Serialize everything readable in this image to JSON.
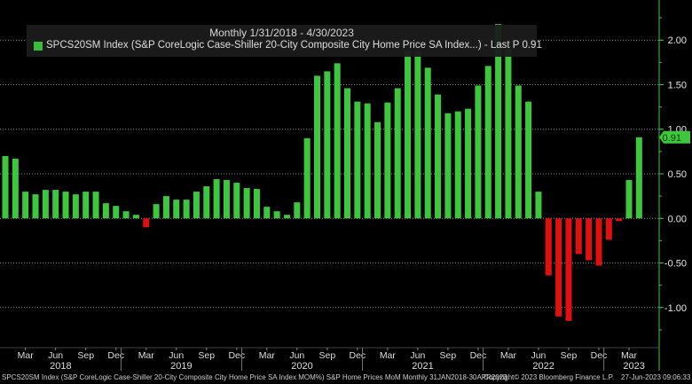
{
  "header": {
    "period": "Monthly 1/31/2018 - 4/30/2023",
    "legend_label": "SPCS20SM Index (S&P CoreLogic Case-Shiller 20-City Composite City Home Price SA Index...) - Last P 0.91"
  },
  "last_value_tag": "0.91",
  "footer": {
    "left": "SPCS20SM Index (S&P CoreLogic Case-Shiller 20-City Composite City Home Price SA Index MOM%) S&P Home Prices MoM  Monthly 31JAN2018-30APR2023",
    "copyright": "Copyright© 2023 Bloomberg Finance L.P.",
    "timestamp": "27-Jun-2023 09:06:33"
  },
  "colors": {
    "positive": "#3ec63e",
    "negative": "#e01010",
    "background": "#000000",
    "axis": "#3ec63e"
  },
  "chart_data": {
    "type": "bar",
    "title": "Monthly 1/31/2018 - 4/30/2023",
    "ylim": [
      -1.45,
      2.45
    ],
    "yticks": [
      2.0,
      1.5,
      1.0,
      0.5,
      0.0,
      -0.5,
      -1.0
    ],
    "ytick_labels": [
      "2.00",
      "1.50",
      "1.00",
      "0.50",
      "0.00",
      "-0.50",
      "-1.00"
    ],
    "grid": true,
    "y_axis_side": "right",
    "month_ticks": [
      {
        "label": "Mar",
        "index": 2
      },
      {
        "label": "Jun",
        "index": 5
      },
      {
        "label": "Sep",
        "index": 8
      },
      {
        "label": "Dec",
        "index": 11
      },
      {
        "label": "Mar",
        "index": 14
      },
      {
        "label": "Jun",
        "index": 17
      },
      {
        "label": "Sep",
        "index": 20
      },
      {
        "label": "Dec",
        "index": 23
      },
      {
        "label": "Mar",
        "index": 26
      },
      {
        "label": "Jun",
        "index": 29
      },
      {
        "label": "Sep",
        "index": 32
      },
      {
        "label": "Dec",
        "index": 35
      },
      {
        "label": "Mar",
        "index": 38
      },
      {
        "label": "Jun",
        "index": 41
      },
      {
        "label": "Sep",
        "index": 44
      },
      {
        "label": "Dec",
        "index": 47
      },
      {
        "label": "Mar",
        "index": 50
      },
      {
        "label": "Jun",
        "index": 53
      },
      {
        "label": "Sep",
        "index": 56
      },
      {
        "label": "Dec",
        "index": 59
      },
      {
        "label": "Mar",
        "index": 62
      }
    ],
    "year_ticks": [
      {
        "label": "2018",
        "index": 5.5
      },
      {
        "label": "2019",
        "index": 17.5
      },
      {
        "label": "2020",
        "index": 29.5
      },
      {
        "label": "2021",
        "index": 41.5
      },
      {
        "label": "2022",
        "index": 53.5
      },
      {
        "label": "2023",
        "index": 62.5
      }
    ],
    "categories": [
      "2018-01",
      "2018-02",
      "2018-03",
      "2018-04",
      "2018-05",
      "2018-06",
      "2018-07",
      "2018-08",
      "2018-09",
      "2018-10",
      "2018-11",
      "2018-12",
      "2019-01",
      "2019-02",
      "2019-03",
      "2019-04",
      "2019-05",
      "2019-06",
      "2019-07",
      "2019-08",
      "2019-09",
      "2019-10",
      "2019-11",
      "2019-12",
      "2020-01",
      "2020-02",
      "2020-03",
      "2020-04",
      "2020-05",
      "2020-06",
      "2020-07",
      "2020-08",
      "2020-09",
      "2020-10",
      "2020-11",
      "2020-12",
      "2021-01",
      "2021-02",
      "2021-03",
      "2021-04",
      "2021-05",
      "2021-06",
      "2021-07",
      "2021-08",
      "2021-09",
      "2021-10",
      "2021-11",
      "2021-12",
      "2022-01",
      "2022-02",
      "2022-03",
      "2022-04",
      "2022-05",
      "2022-06",
      "2022-07",
      "2022-08",
      "2022-09",
      "2022-10",
      "2022-11",
      "2022-12",
      "2023-01",
      "2023-02",
      "2023-03",
      "2023-04"
    ],
    "values": [
      0.7,
      0.67,
      0.3,
      0.27,
      0.32,
      0.32,
      0.3,
      0.27,
      0.3,
      0.3,
      0.17,
      0.14,
      0.08,
      0.04,
      -0.1,
      0.16,
      0.25,
      0.21,
      0.21,
      0.3,
      0.36,
      0.44,
      0.43,
      0.4,
      0.34,
      0.33,
      0.13,
      0.08,
      0.04,
      0.18,
      0.9,
      1.6,
      1.65,
      1.74,
      1.46,
      1.31,
      1.29,
      1.08,
      1.3,
      1.46,
      1.88,
      1.87,
      1.69,
      1.39,
      1.18,
      1.2,
      1.23,
      1.49,
      1.71,
      2.18,
      1.9,
      1.49,
      1.31,
      0.3,
      -0.64,
      -1.1,
      -1.15,
      -0.4,
      -0.47,
      -0.53,
      -0.24,
      -0.03,
      0.43,
      0.91
    ]
  }
}
